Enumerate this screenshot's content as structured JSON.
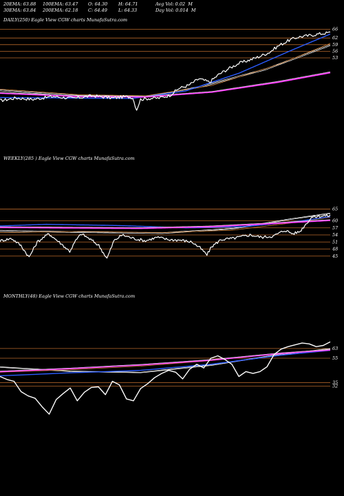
{
  "header": {
    "row1": [
      "20EMA: 63.88",
      "100EMA: 63.47",
      "O: 64.30",
      "H: 64.71",
      "Avg Vol: 0.02  M"
    ],
    "row2": [
      "30EMA: 63.84",
      "200EMA: 62.18",
      "C: 64.49",
      "L: 64.33",
      "Day Vol: 0.014  M"
    ]
  },
  "chart_data": [
    {
      "type": "line",
      "title": "DAILY(250) Eagle  View  CGW charts MunafaSutra.com",
      "ylim": [
        30.5,
        68
      ],
      "yticks": [
        66,
        62,
        59,
        56,
        53
      ],
      "hlines": [
        66,
        62,
        59,
        56,
        53
      ],
      "n": 250,
      "series": [
        {
          "role": "price",
          "color": "#ffffff",
          "width": 1.2,
          "jitter": 0.7,
          "points": [
            [
              0,
              33.6
            ],
            [
              12,
              34.8
            ],
            [
              25,
              34.2
            ],
            [
              40,
              35.5
            ],
            [
              55,
              34.6
            ],
            [
              70,
              35.8
            ],
            [
              85,
              34.8
            ],
            [
              95,
              35.4
            ],
            [
              100,
              35.0
            ],
            [
              103,
              29.5
            ],
            [
              106,
              34.2
            ],
            [
              112,
              34.6
            ],
            [
              120,
              34.8
            ],
            [
              128,
              36.0
            ],
            [
              135,
              39.2
            ],
            [
              142,
              40.5
            ],
            [
              150,
              43.5
            ],
            [
              158,
              42.0
            ],
            [
              165,
              45.5
            ],
            [
              172,
              48.0
            ],
            [
              180,
              50.5
            ],
            [
              188,
              52.0
            ],
            [
              195,
              53.5
            ],
            [
              203,
              55.5
            ],
            [
              210,
              58.5
            ],
            [
              218,
              61.0
            ],
            [
              225,
              62.5
            ],
            [
              232,
              63.0
            ],
            [
              240,
              63.8
            ],
            [
              249,
              64.5
            ]
          ]
        },
        {
          "role": "ema",
          "color": "#ffffff",
          "width": 0.7,
          "points": [
            [
              0,
              38.0
            ],
            [
              60,
              35.5
            ],
            [
              110,
              35.2
            ],
            [
              150,
              40.0
            ],
            [
              200,
              48.0
            ],
            [
              249,
              59.0
            ]
          ]
        },
        {
          "role": "ema",
          "color": "#ffffff",
          "width": 0.7,
          "points": [
            [
              0,
              38.5
            ],
            [
              60,
              36.0
            ],
            [
              110,
              35.6
            ],
            [
              150,
              39.5
            ],
            [
              200,
              47.5
            ],
            [
              249,
              58.5
            ]
          ]
        },
        {
          "role": "ema",
          "color": "#c87a30",
          "width": 0.8,
          "points": [
            [
              0,
              38.8
            ],
            [
              60,
              36.3
            ],
            [
              110,
              35.8
            ],
            [
              160,
              40.5
            ],
            [
              210,
              50.0
            ],
            [
              249,
              59.6
            ]
          ]
        },
        {
          "role": "ema",
          "color": "#2b5cff",
          "width": 1.4,
          "points": [
            [
              0,
              35.0
            ],
            [
              50,
              34.8
            ],
            [
              100,
              34.6
            ],
            [
              140,
              38.0
            ],
            [
              180,
              46.0
            ],
            [
              220,
              56.5
            ],
            [
              249,
              63.8
            ]
          ]
        },
        {
          "role": "ema",
          "color": "#ff3dff",
          "width": 2.0,
          "points": [
            [
              0,
              37.0
            ],
            [
              60,
              35.5
            ],
            [
              110,
              35.3
            ],
            [
              160,
              37.5
            ],
            [
              210,
              42.0
            ],
            [
              249,
              46.3
            ]
          ]
        },
        {
          "role": "ema",
          "color": "#cccccc",
          "width": 0.7,
          "points": [
            [
              0,
              37.3
            ],
            [
              60,
              35.8
            ],
            [
              110,
              35.6
            ],
            [
              160,
              37.8
            ],
            [
              210,
              42.4
            ],
            [
              249,
              46.7
            ]
          ]
        }
      ]
    },
    {
      "type": "line",
      "title": "WEEKLY(285                ) Eagle  View  CGW charts MunafaSutra.com",
      "ylim": [
        42,
        66
      ],
      "yticks": [
        65,
        60,
        57,
        54,
        51,
        48,
        45
      ],
      "hlines": [
        65,
        60,
        57,
        54,
        51,
        48,
        45
      ],
      "n": 285,
      "series": [
        {
          "role": "price",
          "color": "#ffffff",
          "width": 1.2,
          "jitter": 0.6,
          "points": [
            [
              0,
              51.5
            ],
            [
              10,
              52.5
            ],
            [
              18,
              49.5
            ],
            [
              25,
              44.5
            ],
            [
              32,
              51.0
            ],
            [
              42,
              54.5
            ],
            [
              52,
              50.5
            ],
            [
              60,
              47.0
            ],
            [
              65,
              51.5
            ],
            [
              70,
              54.5
            ],
            [
              78,
              52.0
            ],
            [
              85,
              49.5
            ],
            [
              92,
              44.0
            ],
            [
              98,
              51.5
            ],
            [
              105,
              54.0
            ],
            [
              115,
              52.5
            ],
            [
              125,
              51.5
            ],
            [
              135,
              53.0
            ],
            [
              145,
              52.0
            ],
            [
              155,
              51.8
            ],
            [
              165,
              51.0
            ],
            [
              172,
              48.5
            ],
            [
              178,
              45.5
            ],
            [
              182,
              49.0
            ],
            [
              190,
              52.0
            ],
            [
              200,
              52.5
            ],
            [
              215,
              54.0
            ],
            [
              225,
              53.0
            ],
            [
              235,
              53.5
            ],
            [
              245,
              56.0
            ],
            [
              252,
              54.5
            ],
            [
              258,
              55.5
            ],
            [
              262,
              58.0
            ],
            [
              268,
              61.5
            ],
            [
              275,
              62.0
            ],
            [
              284,
              62.2
            ]
          ]
        },
        {
          "role": "ema",
          "color": "#ffffff",
          "width": 0.7,
          "points": [
            [
              0,
              55.5
            ],
            [
              70,
              55.0
            ],
            [
              140,
              54.6
            ],
            [
              200,
              56.5
            ],
            [
              249,
              60.5
            ],
            [
              284,
              63.0
            ]
          ]
        },
        {
          "role": "ema",
          "color": "#ffffff",
          "width": 0.7,
          "points": [
            [
              0,
              56.0
            ],
            [
              70,
              55.3
            ],
            [
              140,
              55.0
            ],
            [
              200,
              56.8
            ],
            [
              249,
              60.8
            ],
            [
              284,
              63.3
            ]
          ]
        },
        {
          "role": "ema",
          "color": "#c87a30",
          "width": 0.8,
          "points": [
            [
              0,
              55.0
            ],
            [
              70,
              55.5
            ],
            [
              140,
              55.0
            ],
            [
              200,
              56.0
            ],
            [
              249,
              59.0
            ],
            [
              284,
              61.5
            ]
          ]
        },
        {
          "role": "ema",
          "color": "#2b5cff",
          "width": 1.4,
          "points": [
            [
              0,
              57.8
            ],
            [
              40,
              58.5
            ],
            [
              100,
              58.0
            ],
            [
              160,
              57.0
            ],
            [
              210,
              57.5
            ],
            [
              260,
              60.0
            ],
            [
              284,
              61.8
            ]
          ]
        },
        {
          "role": "ema",
          "color": "#ff3dff",
          "width": 2.0,
          "points": [
            [
              0,
              57.2
            ],
            [
              60,
              57.0
            ],
            [
              120,
              56.8
            ],
            [
              180,
              57.5
            ],
            [
              240,
              59.0
            ],
            [
              284,
              60.2
            ]
          ]
        },
        {
          "role": "ema",
          "color": "#cccccc",
          "width": 0.7,
          "points": [
            [
              0,
              57.5
            ],
            [
              60,
              57.3
            ],
            [
              120,
              57.1
            ],
            [
              180,
              57.8
            ],
            [
              240,
              59.3
            ],
            [
              284,
              60.5
            ]
          ]
        }
      ]
    },
    {
      "type": "line",
      "title": "MONTHLY(48) Eagle  View  CGW charts MunafaSutra.com",
      "ylim": [
        4,
        72
      ],
      "yticks": [
        63,
        55,
        35,
        32
      ],
      "hlines": [
        63,
        55,
        35,
        32
      ],
      "n": 48,
      "series": [
        {
          "role": "price",
          "color": "#ffffff",
          "width": 1.4,
          "jitter": 0,
          "points": [
            [
              0,
              40.0
            ],
            [
              1,
              37.5
            ],
            [
              2,
              36.0
            ],
            [
              3,
              27.5
            ],
            [
              4,
              24.0
            ],
            [
              5,
              22.0
            ],
            [
              6,
              15.0
            ],
            [
              7,
              9.0
            ],
            [
              8,
              21.0
            ],
            [
              9,
              26.0
            ],
            [
              10,
              30.5
            ],
            [
              11,
              20.0
            ],
            [
              12,
              27.0
            ],
            [
              13,
              31.0
            ],
            [
              14,
              31.5
            ],
            [
              15,
              25.0
            ],
            [
              16,
              36.0
            ],
            [
              17,
              33.0
            ],
            [
              18,
              21.5
            ],
            [
              19,
              20.0
            ],
            [
              20,
              30.0
            ],
            [
              21,
              34.0
            ],
            [
              22,
              39.0
            ],
            [
              23,
              42.5
            ],
            [
              24,
              45.0
            ],
            [
              25,
              43.5
            ],
            [
              26,
              38.0
            ],
            [
              27,
              46.0
            ],
            [
              28,
              50.0
            ],
            [
              29,
              47.0
            ],
            [
              30,
              55.0
            ],
            [
              31,
              57.0
            ],
            [
              32,
              54.0
            ],
            [
              33,
              50.0
            ],
            [
              34,
              40.0
            ],
            [
              35,
              44.0
            ],
            [
              36,
              42.5
            ],
            [
              37,
              44.0
            ],
            [
              38,
              48.0
            ],
            [
              39,
              58.0
            ],
            [
              40,
              62.5
            ],
            [
              41,
              64.5
            ],
            [
              42,
              66.0
            ],
            [
              43,
              67.5
            ],
            [
              44,
              66.8
            ],
            [
              45,
              64.5
            ],
            [
              46,
              65.5
            ],
            [
              47,
              68.5
            ]
          ]
        },
        {
          "role": "ema",
          "color": "#ffffff",
          "width": 0.7,
          "points": [
            [
              0,
              47.5
            ],
            [
              10,
              44.0
            ],
            [
              20,
              43.0
            ],
            [
              30,
              49.0
            ],
            [
              40,
              58.0
            ],
            [
              47,
              62.5
            ]
          ]
        },
        {
          "role": "ema",
          "color": "#ffffff",
          "width": 0.7,
          "points": [
            [
              0,
              48.0
            ],
            [
              10,
              44.5
            ],
            [
              20,
              43.5
            ],
            [
              30,
              49.5
            ],
            [
              40,
              58.5
            ],
            [
              47,
              63.0
            ]
          ]
        },
        {
          "role": "ema",
          "color": "#c87a30",
          "width": 0.8,
          "points": [
            [
              0,
              43.5
            ],
            [
              10,
              45.5
            ],
            [
              20,
              48.5
            ],
            [
              30,
              53.0
            ],
            [
              40,
              59.0
            ],
            [
              47,
              62.0
            ]
          ]
        },
        {
          "role": "ema",
          "color": "#2b5cff",
          "width": 1.4,
          "points": [
            [
              0,
              40.5
            ],
            [
              10,
              43.0
            ],
            [
              20,
              45.0
            ],
            [
              30,
              50.0
            ],
            [
              40,
              57.5
            ],
            [
              47,
              61.5
            ]
          ]
        },
        {
          "role": "ema",
          "color": "#ff3dff",
          "width": 2.0,
          "points": [
            [
              0,
              44.0
            ],
            [
              10,
              46.5
            ],
            [
              20,
              49.5
            ],
            [
              30,
              53.5
            ],
            [
              40,
              59.0
            ],
            [
              47,
              61.8
            ]
          ]
        },
        {
          "role": "ema",
          "color": "#cccccc",
          "width": 0.7,
          "points": [
            [
              0,
              44.4
            ],
            [
              10,
              46.9
            ],
            [
              20,
              49.9
            ],
            [
              30,
              53.9
            ],
            [
              40,
              59.4
            ],
            [
              47,
              62.2
            ]
          ]
        }
      ]
    }
  ],
  "colors": {
    "background": "#000000",
    "gridline": "#b8682a",
    "text": "#ffffff"
  }
}
